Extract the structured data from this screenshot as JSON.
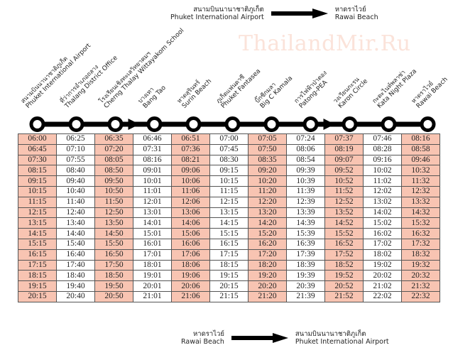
{
  "watermark": "ThailandMir.Ru",
  "direction_top": {
    "from_th": "สนามบินนานาชาติภูเก็ต",
    "from_en": "Phuket International Airport",
    "to_th": "หาดราไวย์",
    "to_en": "Rawai Beach"
  },
  "direction_bottom": {
    "from_th": "หาดราไวย์",
    "from_en": "Rawai Beach",
    "to_th": "สนามบินนานาชาติภูเก็ต",
    "to_en": "Phuket International Airport"
  },
  "stations": [
    {
      "th": "สนามบินนานาชาติภูเก็ต",
      "en": "Phuket International Airport"
    },
    {
      "th": "ที่ว่าการอำเภอถลาง",
      "en": "Thalang District Office"
    },
    {
      "th": "โรงเรียนเชิงทะเลวิทยาคมฯ",
      "en": "Cherng Thalay Wittayakom School"
    },
    {
      "th": "บางเทา",
      "en": "Bang Tao"
    },
    {
      "th": "หาดสุรินทร์",
      "en": "Surin Beach"
    },
    {
      "th": "ภูเก็ตแฟนตาซี",
      "en": "Phuket Fantasea"
    },
    {
      "th": "บิ๊กซีกมลา",
      "en": "Big C Kamala"
    },
    {
      "th": "การไฟฟ้าป่าตอง",
      "en": "Patong-PEA"
    },
    {
      "th": "วงเวียนกะรน",
      "en": "Karon Circle"
    },
    {
      "th": "กะตะไนท์พลาซ่า",
      "en": "Kata Night Plaza"
    },
    {
      "th": "หาดราไวย์",
      "en": "Rawai Beach"
    }
  ],
  "colors": {
    "highlight": "#f8c4b2",
    "line": "#000000"
  },
  "timetable": [
    [
      "06:00",
      "06:25",
      "06:35",
      "06:46",
      "06:51",
      "07:00",
      "07:05",
      "07:24",
      "07:37",
      "07:46",
      "08:16"
    ],
    [
      "06:45",
      "07:10",
      "07:20",
      "07:31",
      "07:36",
      "07:45",
      "07:50",
      "08:06",
      "08:19",
      "08:28",
      "08:58"
    ],
    [
      "07:30",
      "07:55",
      "08:05",
      "08:16",
      "08:21",
      "08:30",
      "08:35",
      "08:54",
      "09:07",
      "09:16",
      "09:46"
    ],
    [
      "08:15",
      "08:40",
      "08:50",
      "09:01",
      "09:06",
      "09:15",
      "09:20",
      "09:39",
      "09:52",
      "10:02",
      "10:32"
    ],
    [
      "09:15",
      "09:40",
      "09:50",
      "10:01",
      "10:06",
      "10:15",
      "10:20",
      "10:39",
      "10:52",
      "11:02",
      "11:32"
    ],
    [
      "10:15",
      "10:40",
      "10:50",
      "11:01",
      "11:06",
      "11:15",
      "11:20",
      "11:39",
      "11:52",
      "12:02",
      "12:32"
    ],
    [
      "11:15",
      "11:40",
      "11:50",
      "12:01",
      "12:06",
      "12:15",
      "12:20",
      "12:39",
      "12:52",
      "13:02",
      "13:32"
    ],
    [
      "12:15",
      "12:40",
      "12:50",
      "13:01",
      "13:06",
      "13:15",
      "13:20",
      "13:39",
      "13:52",
      "14:02",
      "14:32"
    ],
    [
      "13:15",
      "13:40",
      "13:50",
      "14:01",
      "14:06",
      "14:15",
      "14:20",
      "14:39",
      "14:52",
      "15:02",
      "15:32"
    ],
    [
      "14:15",
      "14:40",
      "14:50",
      "15:01",
      "15:06",
      "15:15",
      "15:20",
      "15:39",
      "15:52",
      "16:02",
      "16:32"
    ],
    [
      "15:15",
      "15:40",
      "15:50",
      "16:01",
      "16:06",
      "16:15",
      "16:20",
      "16:39",
      "16:52",
      "17:02",
      "17:32"
    ],
    [
      "16:15",
      "16:40",
      "16:50",
      "17:01",
      "17:06",
      "17:15",
      "17:20",
      "17:39",
      "17:52",
      "18:02",
      "18:32"
    ],
    [
      "17:15",
      "17:40",
      "17:50",
      "18:01",
      "18:06",
      "18:15",
      "18:20",
      "18:39",
      "18:52",
      "19:02",
      "19:32"
    ],
    [
      "18:15",
      "18:40",
      "18:50",
      "19:01",
      "19:06",
      "19:15",
      "19:20",
      "19:39",
      "19:52",
      "20:02",
      "20:32"
    ],
    [
      "19:15",
      "19:40",
      "19:50",
      "20:01",
      "20:06",
      "20:15",
      "20:20",
      "20:39",
      "20:52",
      "21:02",
      "21:32"
    ],
    [
      "20:15",
      "20:40",
      "20:50",
      "21:01",
      "21:06",
      "21:15",
      "21:20",
      "21:39",
      "21:52",
      "22:02",
      "22:32"
    ]
  ]
}
